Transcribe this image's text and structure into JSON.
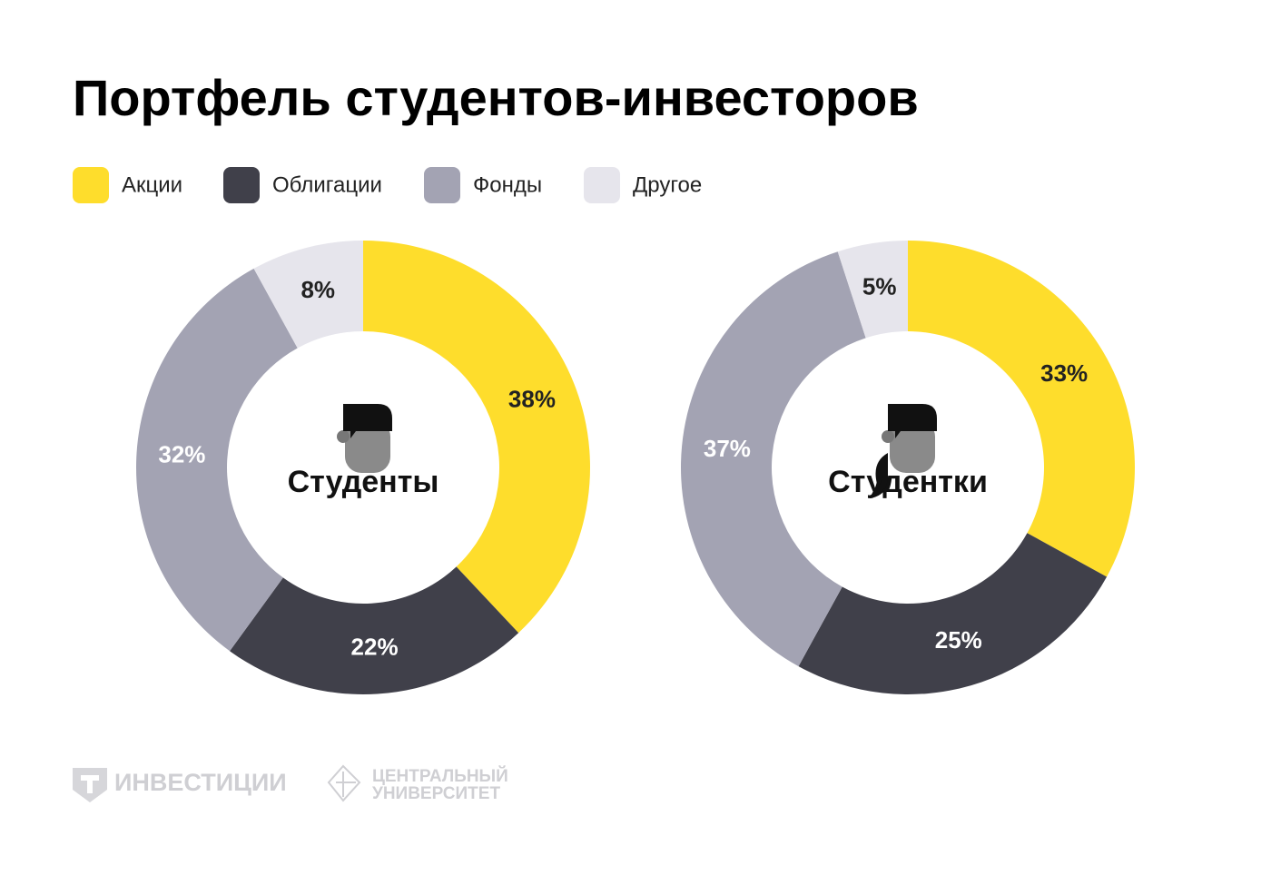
{
  "title": "Портфель студентов-инвесторов",
  "logos": [
    "ИНВЕСТИЦИИ",
    "ЦЕНТРАЛЬНЫЙ",
    "УНИВЕРСИТЕТ"
  ],
  "chart_data": [
    {
      "type": "donut",
      "title": "Студенты",
      "categories": [
        "Акции",
        "Облигации",
        "Фонды",
        "Другое"
      ],
      "values": [
        38,
        22,
        32,
        8
      ],
      "value_labels": [
        "38%",
        "22%",
        "32%",
        "8%"
      ],
      "colors": [
        "#fedd2c",
        "#40404a",
        "#a3a3b3",
        "#e6e5ec"
      ]
    },
    {
      "type": "donut",
      "title": "Студентки",
      "categories": [
        "Акции",
        "Облигации",
        "Фонды",
        "Другое"
      ],
      "values": [
        33,
        25,
        37,
        5
      ],
      "value_labels": [
        "33%",
        "25%",
        "37%",
        "5%"
      ],
      "colors": [
        "#fedd2c",
        "#40404a",
        "#a3a3b3",
        "#e6e5ec"
      ]
    }
  ]
}
